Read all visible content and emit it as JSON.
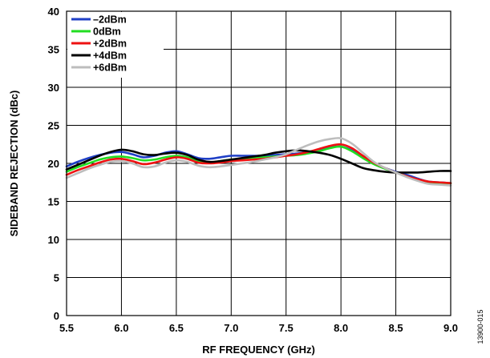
{
  "figure_id": "13900-015",
  "chart_data": {
    "type": "line",
    "title": "",
    "xlabel": "RF FREQUENCY (GHz)",
    "ylabel": "SIDEBAND REJECTION (dBc)",
    "xlim": [
      5.5,
      9.0
    ],
    "ylim": [
      0,
      40
    ],
    "xticks": [
      5.5,
      6.0,
      6.5,
      7.0,
      7.5,
      8.0,
      8.5,
      9.0
    ],
    "xtick_labels": [
      "5.5",
      "6.0",
      "6.5",
      "7.0",
      "7.5",
      "8.0",
      "8.5",
      "9.0"
    ],
    "yticks": [
      0,
      5,
      10,
      15,
      20,
      25,
      30,
      35,
      40
    ],
    "ytick_labels": [
      "0",
      "5",
      "10",
      "15",
      "20",
      "25",
      "30",
      "35",
      "40"
    ],
    "grid": true,
    "legend_position": "top-left",
    "series": [
      {
        "name": "–2dBm",
        "color": "#1f3fc6",
        "x": [
          5.5,
          5.6,
          5.7,
          5.8,
          5.9,
          6.0,
          6.1,
          6.2,
          6.3,
          6.4,
          6.5,
          6.6,
          6.7,
          6.8,
          6.9,
          7.0,
          7.1,
          7.2,
          7.3,
          7.4,
          7.5,
          7.6,
          7.7,
          7.8,
          7.9,
          8.0,
          8.1,
          8.2,
          8.3,
          8.4,
          8.5,
          8.6,
          8.7,
          8.8,
          8.9,
          9.0
        ],
        "y": [
          19.6,
          20.2,
          20.7,
          21.1,
          21.4,
          21.5,
          21.2,
          20.8,
          21.0,
          21.4,
          21.6,
          21.2,
          20.7,
          20.6,
          20.8,
          21.0,
          21.0,
          21.0,
          21.0,
          21.1,
          21.2,
          21.3,
          21.5,
          21.8,
          22.1,
          22.2,
          21.7,
          20.8,
          20.0,
          19.4,
          18.9,
          18.5,
          18.0,
          17.6,
          17.5,
          17.4
        ]
      },
      {
        "name": "0dBm",
        "color": "#22dd22",
        "x": [
          5.5,
          5.6,
          5.7,
          5.8,
          5.9,
          6.0,
          6.1,
          6.2,
          6.3,
          6.4,
          6.5,
          6.6,
          6.7,
          6.8,
          6.9,
          7.0,
          7.1,
          7.2,
          7.3,
          7.4,
          7.5,
          7.6,
          7.7,
          7.8,
          7.9,
          8.0,
          8.1,
          8.2,
          8.3,
          8.4,
          8.5,
          8.6,
          8.7,
          8.8,
          8.9,
          9.0
        ],
        "y": [
          18.9,
          19.5,
          20.0,
          20.5,
          20.8,
          20.9,
          20.7,
          20.4,
          20.5,
          20.8,
          21.0,
          20.8,
          20.3,
          20.1,
          20.3,
          20.5,
          20.6,
          20.7,
          20.8,
          20.9,
          21.0,
          21.1,
          21.3,
          21.6,
          22.0,
          22.2,
          21.6,
          20.7,
          19.9,
          19.3,
          18.8,
          18.3,
          17.8,
          17.5,
          17.4,
          17.4
        ]
      },
      {
        "name": "+2dBm",
        "color": "#ee1111",
        "x": [
          5.5,
          5.6,
          5.7,
          5.8,
          5.9,
          6.0,
          6.1,
          6.2,
          6.3,
          6.4,
          6.5,
          6.6,
          6.7,
          6.8,
          6.9,
          7.0,
          7.1,
          7.2,
          7.3,
          7.4,
          7.5,
          7.6,
          7.7,
          7.8,
          7.9,
          8.0,
          8.1,
          8.2,
          8.3,
          8.4,
          8.5,
          8.6,
          8.7,
          8.8,
          8.9,
          9.0
        ],
        "y": [
          18.5,
          19.1,
          19.6,
          20.1,
          20.5,
          20.6,
          20.3,
          19.9,
          20.1,
          20.5,
          20.8,
          20.6,
          20.1,
          20.0,
          20.1,
          20.3,
          20.4,
          20.5,
          20.6,
          20.8,
          21.0,
          21.2,
          21.5,
          21.9,
          22.3,
          22.5,
          22.0,
          21.0,
          20.1,
          19.4,
          18.8,
          18.3,
          17.9,
          17.6,
          17.5,
          17.4
        ]
      },
      {
        "name": "+4dBm",
        "color": "#000000",
        "x": [
          5.5,
          5.6,
          5.7,
          5.8,
          5.9,
          6.0,
          6.1,
          6.2,
          6.3,
          6.4,
          6.5,
          6.6,
          6.7,
          6.8,
          6.9,
          7.0,
          7.1,
          7.2,
          7.3,
          7.4,
          7.5,
          7.6,
          7.7,
          7.8,
          7.9,
          8.0,
          8.1,
          8.2,
          8.3,
          8.4,
          8.5,
          8.6,
          8.7,
          8.8,
          8.9,
          9.0
        ],
        "y": [
          19.2,
          19.8,
          20.4,
          21.0,
          21.5,
          21.8,
          21.6,
          21.2,
          21.1,
          21.3,
          21.4,
          21.1,
          20.5,
          20.2,
          20.3,
          20.5,
          20.7,
          20.9,
          21.1,
          21.4,
          21.6,
          21.7,
          21.6,
          21.4,
          21.1,
          20.6,
          20.0,
          19.4,
          19.1,
          18.9,
          18.8,
          18.8,
          18.8,
          18.9,
          19.0,
          19.0
        ]
      },
      {
        "name": "+6dBm",
        "color": "#bdbdbd",
        "x": [
          5.5,
          5.6,
          5.7,
          5.8,
          5.9,
          6.0,
          6.1,
          6.2,
          6.3,
          6.4,
          6.5,
          6.6,
          6.7,
          6.8,
          6.9,
          7.0,
          7.1,
          7.2,
          7.3,
          7.4,
          7.5,
          7.6,
          7.7,
          7.8,
          7.9,
          8.0,
          8.1,
          8.2,
          8.3,
          8.4,
          8.5,
          8.6,
          8.7,
          8.8,
          8.9,
          9.0
        ],
        "y": [
          18.1,
          18.7,
          19.3,
          19.8,
          20.2,
          20.3,
          20.0,
          19.5,
          19.6,
          20.1,
          20.4,
          20.2,
          19.7,
          19.5,
          19.6,
          19.8,
          20.0,
          20.2,
          20.5,
          20.8,
          21.2,
          21.8,
          22.4,
          22.9,
          23.2,
          23.3,
          22.6,
          21.4,
          20.2,
          19.4,
          18.8,
          18.2,
          17.7,
          17.3,
          17.2,
          17.1
        ]
      }
    ]
  }
}
